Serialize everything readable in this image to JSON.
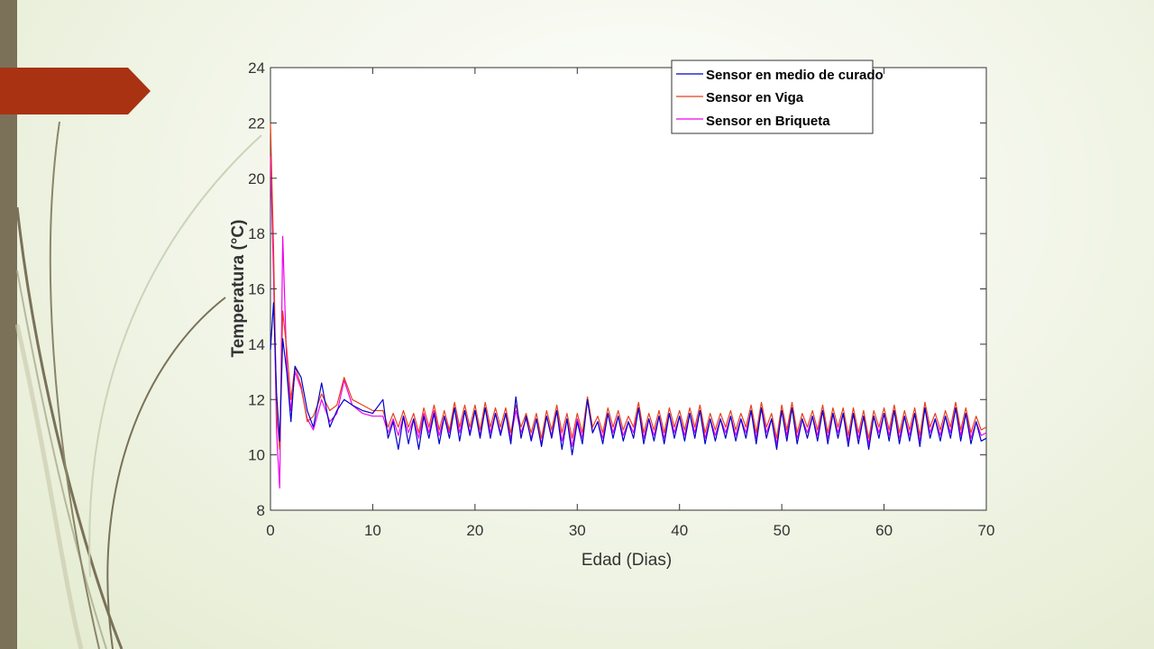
{
  "slide": {
    "accent_color": "#a93212",
    "sidebar_color": "#7a7158"
  },
  "chart_data": {
    "type": "line",
    "title": "",
    "xlabel": "Edad (Dias)",
    "ylabel": "Temperatura (°C)",
    "xlim": [
      0,
      70
    ],
    "ylim": [
      8,
      24
    ],
    "xticks": [
      "0",
      "10",
      "20",
      "30",
      "40",
      "50",
      "60",
      "70"
    ],
    "yticks": [
      "8",
      "10",
      "12",
      "14",
      "16",
      "18",
      "20",
      "22",
      "24"
    ],
    "grid": false,
    "legend_position": "top-right",
    "series": [
      {
        "name": "Sensor en medio de curado",
        "color": "#0000cc",
        "x": [
          0,
          0.3,
          0.6,
          0.9,
          1.2,
          1.6,
          2.0,
          2.4,
          3.0,
          3.6,
          4.2,
          5.0,
          5.8,
          6.5,
          7.2,
          8.0,
          9.0,
          10.0,
          11.0,
          11.5,
          12.0,
          12.5,
          13.0,
          13.5,
          14.0,
          14.5,
          15.0,
          15.5,
          16.0,
          16.5,
          17.0,
          17.5,
          18.0,
          18.5,
          19.0,
          19.5,
          20.0,
          20.5,
          21.0,
          21.5,
          22.0,
          22.5,
          23.0,
          23.5,
          24.0,
          24.5,
          25.0,
          25.5,
          26.0,
          26.5,
          27.0,
          27.5,
          28.0,
          28.5,
          29.0,
          29.5,
          30.0,
          30.5,
          31.0,
          31.5,
          32.0,
          32.5,
          33.0,
          33.5,
          34.0,
          34.5,
          35.0,
          35.5,
          36.0,
          36.5,
          37.0,
          37.5,
          38.0,
          38.5,
          39.0,
          39.5,
          40.0,
          40.5,
          41.0,
          41.5,
          42.0,
          42.5,
          43.0,
          43.5,
          44.0,
          44.5,
          45.0,
          45.5,
          46.0,
          46.5,
          47.0,
          47.5,
          48.0,
          48.5,
          49.0,
          49.5,
          50.0,
          50.5,
          51.0,
          51.5,
          52.0,
          52.5,
          53.0,
          53.5,
          54.0,
          54.5,
          55.0,
          55.5,
          56.0,
          56.5,
          57.0,
          57.5,
          58.0,
          58.5,
          59.0,
          59.5,
          60.0,
          60.5,
          61.0,
          61.5,
          62.0,
          62.5,
          63.0,
          63.5,
          64.0,
          64.5,
          65.0,
          65.5,
          66.0,
          66.5,
          67.0,
          67.5,
          68.0,
          68.5,
          69.0,
          69.5,
          70.0
        ],
        "values": [
          13.8,
          15.5,
          12.2,
          10.5,
          14.2,
          13.0,
          11.2,
          13.2,
          12.8,
          11.6,
          11.0,
          12.6,
          11.0,
          11.6,
          12.0,
          11.8,
          11.6,
          11.5,
          12.0,
          10.6,
          11.2,
          10.2,
          11.4,
          10.4,
          11.3,
          10.2,
          11.4,
          10.6,
          11.5,
          10.4,
          11.4,
          10.6,
          11.7,
          10.5,
          11.6,
          10.7,
          11.6,
          10.6,
          11.7,
          10.6,
          11.5,
          10.7,
          11.5,
          10.4,
          12.1,
          10.6,
          11.4,
          10.5,
          11.3,
          10.3,
          11.4,
          10.6,
          11.6,
          10.2,
          11.3,
          10.0,
          11.2,
          10.4,
          12.0,
          10.8,
          11.2,
          10.4,
          11.5,
          10.6,
          11.4,
          10.5,
          11.2,
          10.6,
          11.7,
          10.4,
          11.3,
          10.5,
          11.4,
          10.4,
          11.5,
          10.6,
          11.4,
          10.5,
          11.5,
          10.6,
          11.6,
          10.4,
          11.3,
          10.5,
          11.3,
          10.6,
          11.4,
          10.5,
          11.3,
          10.6,
          11.6,
          10.4,
          11.7,
          10.6,
          11.3,
          10.2,
          11.6,
          10.5,
          11.7,
          10.4,
          11.3,
          10.6,
          11.4,
          10.5,
          11.6,
          10.4,
          11.5,
          10.6,
          11.5,
          10.3,
          11.5,
          10.4,
          11.4,
          10.2,
          11.4,
          10.6,
          11.5,
          10.5,
          11.6,
          10.4,
          11.4,
          10.5,
          11.5,
          10.3,
          11.7,
          10.6,
          11.3,
          10.5,
          11.4,
          10.6,
          11.7,
          10.5,
          11.5,
          10.4,
          11.2,
          10.5,
          10.6
        ]
      },
      {
        "name": "Sensor en Viga",
        "color": "#e8401a",
        "x": [
          0,
          0.3,
          0.6,
          0.9,
          1.2,
          1.6,
          2.0,
          2.4,
          3.0,
          3.6,
          4.2,
          5.0,
          5.8,
          6.5,
          7.2,
          8.0,
          9.0,
          10.0,
          11.0,
          11.5,
          12.0,
          12.5,
          13.0,
          13.5,
          14.0,
          14.5,
          15.0,
          15.5,
          16.0,
          16.5,
          17.0,
          17.5,
          18.0,
          18.5,
          19.0,
          19.5,
          20.0,
          20.5,
          21.0,
          21.5,
          22.0,
          22.5,
          23.0,
          23.5,
          24.0,
          24.5,
          25.0,
          25.5,
          26.0,
          26.5,
          27.0,
          27.5,
          28.0,
          28.5,
          29.0,
          29.5,
          30.0,
          30.5,
          31.0,
          31.5,
          32.0,
          32.5,
          33.0,
          33.5,
          34.0,
          34.5,
          35.0,
          35.5,
          36.0,
          36.5,
          37.0,
          37.5,
          38.0,
          38.5,
          39.0,
          39.5,
          40.0,
          40.5,
          41.0,
          41.5,
          42.0,
          42.5,
          43.0,
          43.5,
          44.0,
          44.5,
          45.0,
          45.5,
          46.0,
          46.5,
          47.0,
          47.5,
          48.0,
          48.5,
          49.0,
          49.5,
          50.0,
          50.5,
          51.0,
          51.5,
          52.0,
          52.5,
          53.0,
          53.5,
          54.0,
          54.5,
          55.0,
          55.5,
          56.0,
          56.5,
          57.0,
          57.5,
          58.0,
          58.5,
          59.0,
          59.5,
          60.0,
          60.5,
          61.0,
          61.5,
          62.0,
          62.5,
          63.0,
          63.5,
          64.0,
          64.5,
          65.0,
          65.5,
          66.0,
          66.5,
          67.0,
          67.5,
          68.0,
          68.5,
          69.0,
          69.5,
          70.0
        ],
        "values": [
          22.0,
          17.5,
          11.5,
          10.2,
          15.2,
          13.8,
          12.0,
          13.2,
          12.5,
          11.2,
          11.4,
          12.2,
          11.6,
          11.8,
          12.8,
          12.0,
          11.8,
          11.6,
          11.6,
          11.0,
          11.5,
          11.0,
          11.6,
          11.0,
          11.5,
          10.8,
          11.7,
          11.0,
          11.8,
          10.9,
          11.6,
          10.9,
          11.9,
          11.0,
          11.8,
          11.0,
          11.8,
          10.9,
          11.9,
          11.0,
          11.7,
          11.0,
          11.7,
          10.8,
          11.8,
          11.0,
          11.5,
          10.8,
          11.5,
          10.6,
          11.6,
          10.9,
          11.8,
          10.8,
          11.5,
          10.6,
          11.5,
          10.8,
          12.1,
          11.0,
          11.4,
          10.8,
          11.7,
          11.0,
          11.6,
          10.9,
          11.4,
          11.0,
          11.9,
          10.8,
          11.5,
          10.9,
          11.6,
          10.8,
          11.7,
          11.0,
          11.6,
          10.9,
          11.7,
          11.0,
          11.8,
          10.8,
          11.5,
          10.9,
          11.5,
          11.0,
          11.6,
          10.9,
          11.5,
          11.0,
          11.8,
          10.8,
          11.9,
          11.0,
          11.5,
          10.6,
          11.8,
          10.9,
          11.9,
          10.8,
          11.5,
          11.0,
          11.6,
          10.9,
          11.8,
          10.8,
          11.7,
          11.0,
          11.7,
          10.7,
          11.7,
          10.8,
          11.6,
          10.6,
          11.6,
          11.0,
          11.7,
          10.9,
          11.8,
          10.8,
          11.6,
          10.9,
          11.7,
          10.7,
          11.9,
          11.0,
          11.5,
          10.9,
          11.6,
          11.0,
          11.9,
          10.9,
          11.7,
          10.8,
          11.4,
          10.9,
          11.0
        ]
      },
      {
        "name": "Sensor en Briqueta",
        "color": "#ee00ee",
        "x": [
          0,
          0.3,
          0.6,
          0.9,
          1.2,
          1.6,
          2.0,
          2.4,
          3.0,
          3.6,
          4.2,
          5.0,
          5.8,
          6.5,
          7.2,
          8.0,
          9.0,
          10.0,
          11.0,
          11.5,
          12.0,
          12.5,
          13.0,
          13.5,
          14.0,
          14.5,
          15.0,
          15.5,
          16.0,
          16.5,
          17.0,
          17.5,
          18.0,
          18.5,
          19.0,
          19.5,
          20.0,
          20.5,
          21.0,
          21.5,
          22.0,
          22.5,
          23.0,
          23.5,
          24.0,
          24.5,
          25.0,
          25.5,
          26.0,
          26.5,
          27.0,
          27.5,
          28.0,
          28.5,
          29.0,
          29.5,
          30.0,
          30.5,
          31.0,
          31.5,
          32.0,
          32.5,
          33.0,
          33.5,
          34.0,
          34.5,
          35.0,
          35.5,
          36.0,
          36.5,
          37.0,
          37.5,
          38.0,
          38.5,
          39.0,
          39.5,
          40.0,
          40.5,
          41.0,
          41.5,
          42.0,
          42.5,
          43.0,
          43.5,
          44.0,
          44.5,
          45.0,
          45.5,
          46.0,
          46.5,
          47.0,
          47.5,
          48.0,
          48.5,
          49.0,
          49.5,
          50.0,
          50.5,
          51.0,
          51.5,
          52.0,
          52.5,
          53.0,
          53.5,
          54.0,
          54.5,
          55.0,
          55.5,
          56.0,
          56.5,
          57.0,
          57.5,
          58.0,
          58.5,
          59.0,
          59.5,
          60.0,
          60.5,
          61.0,
          61.5,
          62.0,
          62.5,
          63.0,
          63.5,
          64.0,
          64.5,
          65.0,
          65.5,
          66.0,
          66.5,
          67.0,
          67.5,
          68.0,
          68.5,
          69.0,
          69.5,
          70.0
        ],
        "values": [
          20.8,
          16.5,
          10.8,
          8.8,
          17.9,
          13.2,
          11.6,
          13.0,
          12.4,
          11.3,
          10.9,
          12.0,
          11.2,
          11.5,
          12.7,
          11.8,
          11.5,
          11.4,
          11.4,
          10.8,
          11.3,
          10.7,
          11.4,
          10.8,
          11.3,
          10.6,
          11.5,
          10.8,
          11.6,
          10.7,
          11.4,
          10.8,
          11.7,
          10.8,
          11.6,
          10.8,
          11.6,
          10.7,
          11.7,
          10.8,
          11.5,
          10.8,
          11.5,
          10.6,
          11.6,
          10.8,
          11.3,
          10.6,
          11.3,
          10.4,
          11.4,
          10.7,
          11.6,
          10.5,
          11.3,
          10.3,
          11.3,
          10.6,
          12.0,
          10.8,
          11.2,
          10.6,
          11.5,
          10.8,
          11.4,
          10.7,
          11.2,
          10.8,
          11.7,
          10.6,
          11.3,
          10.7,
          11.4,
          10.6,
          11.5,
          10.8,
          11.4,
          10.7,
          11.5,
          10.8,
          11.6,
          10.6,
          11.3,
          10.7,
          11.3,
          10.8,
          11.4,
          10.7,
          11.3,
          10.8,
          11.6,
          10.6,
          11.7,
          10.8,
          11.3,
          10.4,
          11.6,
          10.7,
          11.7,
          10.6,
          11.3,
          10.8,
          11.4,
          10.7,
          11.6,
          10.6,
          11.5,
          10.8,
          11.5,
          10.5,
          11.5,
          10.6,
          11.4,
          10.4,
          11.4,
          10.8,
          11.5,
          10.7,
          11.6,
          10.6,
          11.4,
          10.7,
          11.5,
          10.5,
          11.7,
          10.8,
          11.3,
          10.7,
          11.4,
          10.8,
          11.7,
          10.7,
          11.5,
          10.6,
          11.2,
          10.7,
          10.8
        ]
      }
    ]
  }
}
